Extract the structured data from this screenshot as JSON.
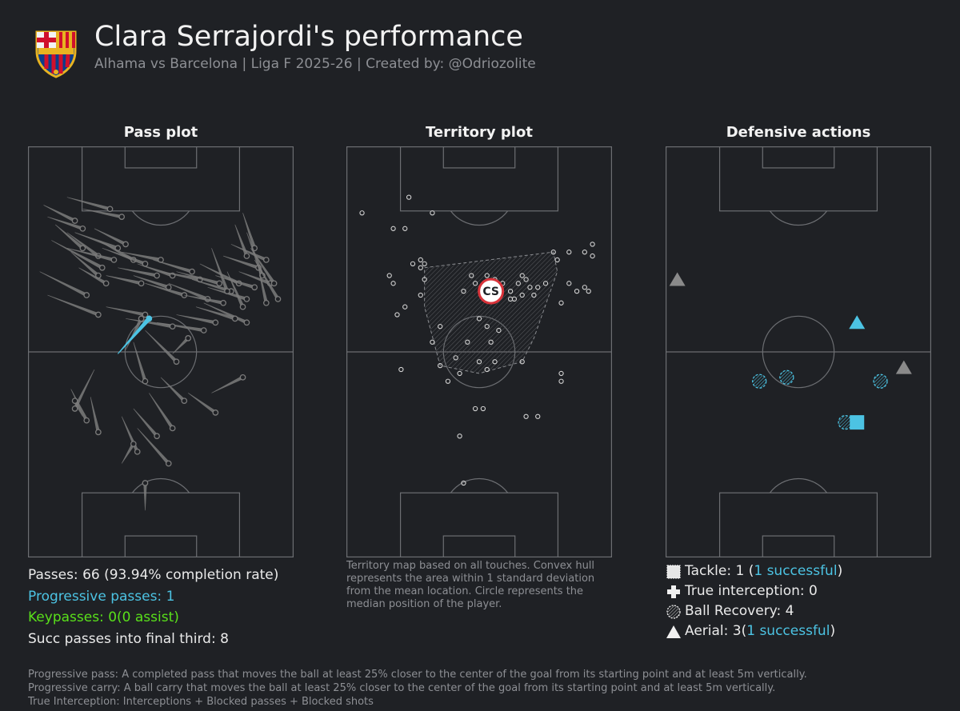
{
  "header": {
    "title": "Clara Serrajordi's performance",
    "subtitle": "Alhama vs Barcelona | Liga F 2025-26 | Created by: @Odriozolite",
    "crest_icon": "fc-barcelona-crest-icon"
  },
  "panels": {
    "pass_title": "Pass plot",
    "territory_title": "Territory plot",
    "defensive_title": "Defensive actions"
  },
  "colors": {
    "background": "#1f2125",
    "lines": "#6c6e72",
    "pass": "#7b7b7b",
    "progressive": "#4cc3e3",
    "keypass": "#59e01a",
    "marker_red": "#d9333a"
  },
  "pass_stats": {
    "passes": "Passes: 66 (93.94% completion rate)",
    "progressive": "Progressive passes: 1",
    "keypasses": "Keypasses: 0(0 assist)",
    "final_third": "Succ passes into final third: 8"
  },
  "territory_note": "Territory map based on all touches. Convex hull represents the area within 1 standard deviation from the mean location. Circle represents the median position of the player.",
  "defensive_legend": {
    "tackle_prefix": "Tackle: 1 (",
    "tackle_success": "1 successful",
    "tackle_suffix": ")",
    "interception": "True interception: 0",
    "recovery": "Ball Recovery: 4",
    "aerial_prefix": "Aerial: 3(",
    "aerial_success": "1 successful",
    "aerial_suffix": ")"
  },
  "footer": {
    "line1": "Progressive pass: A completed pass that moves the ball at least 25% closer to the center of the goal from its starting point and at least 5m vertically.",
    "line2": "Progressive carry: A ball carry that moves the ball at least 25% closer to the center of the goal from its starting point and at least 5m vertically.",
    "line3": "True Interception: Interceptions + Blocked passes + Blocked shots"
  },
  "chart_data": [
    {
      "type": "scatter",
      "title": "Pass plot",
      "pitch": {
        "width": 68,
        "length": 105,
        "attacking_direction": "up"
      },
      "passes": [
        {
          "x": [
            4,
            12
          ],
          "y": [
            90,
            86
          ],
          "type": "completed"
        },
        {
          "x": [
            5,
            14
          ],
          "y": [
            87,
            84
          ],
          "type": "completed"
        },
        {
          "x": [
            7,
            14
          ],
          "y": [
            85,
            79
          ],
          "type": "completed"
        },
        {
          "x": [
            10,
            18
          ],
          "y": [
            83,
            77
          ],
          "type": "completed"
        },
        {
          "x": [
            10,
            22
          ],
          "y": [
            79,
            76
          ],
          "type": "completed"
        },
        {
          "x": [
            6,
            19
          ],
          "y": [
            81,
            74
          ],
          "type": "completed"
        },
        {
          "x": [
            3,
            15
          ],
          "y": [
            73,
            67
          ],
          "type": "completed"
        },
        {
          "x": [
            5,
            18
          ],
          "y": [
            67,
            62
          ],
          "type": "completed"
        },
        {
          "x": [
            12,
            23
          ],
          "y": [
            83,
            79
          ],
          "type": "completed"
        },
        {
          "x": [
            17,
            25
          ],
          "y": [
            84,
            80
          ],
          "type": "completed"
        },
        {
          "x": [
            11,
            18
          ],
          "y": [
            78,
            72
          ],
          "type": "completed"
        },
        {
          "x": [
            13,
            20
          ],
          "y": [
            74,
            70
          ],
          "type": "completed"
        },
        {
          "x": [
            10,
            21
          ],
          "y": [
            92,
            89
          ],
          "type": "completed"
        },
        {
          "x": [
            14,
            24
          ],
          "y": [
            89,
            87
          ],
          "type": "completed"
        },
        {
          "x": [
            18,
            27
          ],
          "y": [
            81,
            76
          ],
          "type": "completed"
        },
        {
          "x": [
            19,
            30
          ],
          "y": [
            79,
            75
          ],
          "type": "completed"
        },
        {
          "x": [
            20,
            29
          ],
          "y": [
            72,
            70
          ],
          "type": "completed"
        },
        {
          "x": [
            23,
            33
          ],
          "y": [
            74,
            72
          ],
          "type": "completed"
        },
        {
          "x": [
            24,
            34
          ],
          "y": [
            78,
            76
          ],
          "type": "completed"
        },
        {
          "x": [
            27,
            36
          ],
          "y": [
            72,
            69
          ],
          "type": "completed"
        },
        {
          "x": [
            28,
            37
          ],
          "y": [
            75,
            72
          ],
          "type": "completed"
        },
        {
          "x": [
            30,
            40
          ],
          "y": [
            70,
            67
          ],
          "type": "completed"
        },
        {
          "x": [
            32,
            42
          ],
          "y": [
            76,
            73
          ],
          "type": "completed"
        },
        {
          "x": [
            34,
            44
          ],
          "y": [
            73,
            71
          ],
          "type": "completed"
        },
        {
          "x": [
            36,
            46
          ],
          "y": [
            70,
            66
          ],
          "type": "completed"
        },
        {
          "x": [
            38,
            49
          ],
          "y": [
            73,
            70
          ],
          "type": "completed"
        },
        {
          "x": [
            40,
            50
          ],
          "y": [
            67,
            65
          ],
          "type": "completed"
        },
        {
          "x": [
            42,
            52
          ],
          "y": [
            71,
            68
          ],
          "type": "completed"
        },
        {
          "x": [
            44,
            54
          ],
          "y": [
            75,
            70
          ],
          "type": "completed"
        },
        {
          "x": [
            46,
            56
          ],
          "y": [
            69,
            66
          ],
          "type": "completed"
        },
        {
          "x": [
            48,
            58
          ],
          "y": [
            72,
            69
          ],
          "type": "completed"
        },
        {
          "x": [
            50,
            59
          ],
          "y": [
            77,
            74
          ],
          "type": "completed"
        },
        {
          "x": [
            52,
            61
          ],
          "y": [
            80,
            76
          ],
          "type": "completed"
        },
        {
          "x": [
            54,
            62
          ],
          "y": [
            73,
            70
          ],
          "type": "completed"
        },
        {
          "x": [
            55,
            58
          ],
          "y": [
            88,
            79
          ],
          "type": "completed"
        },
        {
          "x": [
            53,
            56
          ],
          "y": [
            85,
            77
          ],
          "type": "completed"
        },
        {
          "x": [
            56,
            60
          ],
          "y": [
            83,
            72
          ],
          "type": "completed"
        },
        {
          "x": [
            57,
            63
          ],
          "y": [
            79,
            70
          ],
          "type": "completed"
        },
        {
          "x": [
            51,
            55
          ],
          "y": [
            73,
            64
          ],
          "type": "completed"
        },
        {
          "x": [
            47,
            51
          ],
          "y": [
            79,
            68
          ],
          "type": "completed"
        },
        {
          "x": [
            58,
            64
          ],
          "y": [
            76,
            66
          ],
          "type": "completed"
        },
        {
          "x": [
            59,
            61
          ],
          "y": [
            74,
            65
          ],
          "type": "completed"
        },
        {
          "x": [
            45,
            56
          ],
          "y": [
            65,
            60
          ],
          "type": "completed"
        },
        {
          "x": [
            43,
            53
          ],
          "y": [
            64,
            61
          ],
          "type": "completed"
        },
        {
          "x": [
            38,
            48
          ],
          "y": [
            62,
            60
          ],
          "type": "completed"
        },
        {
          "x": [
            33,
            45
          ],
          "y": [
            60,
            58
          ],
          "type": "completed"
        },
        {
          "x": [
            25,
            37
          ],
          "y": [
            61,
            59
          ],
          "type": "completed"
        },
        {
          "x": [
            20,
            30
          ],
          "y": [
            64,
            62
          ],
          "type": "completed"
        },
        {
          "x": [
            30,
            38
          ],
          "y": [
            58,
            50
          ],
          "type": "completed"
        },
        {
          "x": [
            27,
            30
          ],
          "y": [
            55,
            45
          ],
          "type": "completed"
        },
        {
          "x": [
            34,
            40
          ],
          "y": [
            46,
            40
          ],
          "type": "completed"
        },
        {
          "x": [
            31,
            37
          ],
          "y": [
            42,
            33
          ],
          "type": "completed"
        },
        {
          "x": [
            27,
            33
          ],
          "y": [
            38,
            31
          ],
          "type": "completed"
        },
        {
          "x": [
            24,
            28
          ],
          "y": [
            36,
            27
          ],
          "type": "completed"
        },
        {
          "x": [
            28,
            36
          ],
          "y": [
            33,
            24
          ],
          "type": "completed"
        },
        {
          "x": [
            17,
            12
          ],
          "y": [
            48,
            38
          ],
          "type": "completed"
        },
        {
          "x": [
            16,
            18
          ],
          "y": [
            41,
            32
          ],
          "type": "completed"
        },
        {
          "x": [
            11,
            15
          ],
          "y": [
            43,
            35
          ],
          "type": "completed"
        },
        {
          "x": [
            41,
            48
          ],
          "y": [
            42,
            37
          ],
          "type": "completed"
        },
        {
          "x": [
            47,
            55
          ],
          "y": [
            42,
            46
          ],
          "type": "completed"
        },
        {
          "x": [
            25,
            29
          ],
          "y": [
            53,
            61
          ],
          "type": "completed"
        },
        {
          "x": [
            37,
            41
          ],
          "y": [
            52,
            56
          ],
          "type": "completed"
        },
        {
          "x": [
            14,
            12
          ],
          "y": [
            36,
            40
          ],
          "type": "completed"
        },
        {
          "x": [
            24,
            27
          ],
          "y": [
            24,
            29
          ],
          "type": "completed"
        },
        {
          "x": [
            30,
            30
          ],
          "y": [
            12,
            19
          ],
          "type": "completed"
        },
        {
          "x": [
            23,
            31
          ],
          "y": [
            52,
            61
          ],
          "type": "progressive"
        }
      ]
    },
    {
      "type": "scatter",
      "title": "Territory plot",
      "pitch": {
        "width": 68,
        "length": 105,
        "attacking_direction": "up"
      },
      "median_position": {
        "x": 37,
        "y": 68,
        "label": "CS"
      },
      "convex_hull": [
        [
          20,
          74
        ],
        [
          53,
          78
        ],
        [
          54,
          73
        ],
        [
          48,
          56
        ],
        [
          45,
          50
        ],
        [
          34,
          47
        ],
        [
          24,
          49
        ],
        [
          20,
          64
        ]
      ],
      "touches": [
        [
          4,
          88
        ],
        [
          16,
          92
        ],
        [
          22,
          88
        ],
        [
          12,
          84
        ],
        [
          15,
          84
        ],
        [
          19,
          76
        ],
        [
          17,
          75
        ],
        [
          12,
          70
        ],
        [
          11,
          72
        ],
        [
          20,
          71
        ],
        [
          19,
          74
        ],
        [
          20,
          75
        ],
        [
          19,
          67
        ],
        [
          32,
          72
        ],
        [
          33,
          70
        ],
        [
          30,
          68
        ],
        [
          36,
          72
        ],
        [
          38,
          71
        ],
        [
          40,
          70
        ],
        [
          45,
          72
        ],
        [
          46,
          71
        ],
        [
          44,
          70
        ],
        [
          42,
          68
        ],
        [
          47,
          69
        ],
        [
          45,
          67
        ],
        [
          49,
          69
        ],
        [
          43,
          66
        ],
        [
          48,
          67
        ],
        [
          42,
          66
        ],
        [
          51,
          70
        ],
        [
          53,
          78
        ],
        [
          54,
          76
        ],
        [
          57,
          78
        ],
        [
          61,
          78
        ],
        [
          63,
          80
        ],
        [
          63,
          77
        ],
        [
          57,
          70
        ],
        [
          59,
          68
        ],
        [
          61,
          69
        ],
        [
          62,
          68
        ],
        [
          55,
          65
        ],
        [
          36,
          59
        ],
        [
          37,
          55
        ],
        [
          39,
          58
        ],
        [
          34,
          61
        ],
        [
          31,
          55
        ],
        [
          24,
          59
        ],
        [
          22,
          55
        ],
        [
          15,
          64
        ],
        [
          13,
          62
        ],
        [
          28,
          51
        ],
        [
          34,
          50
        ],
        [
          38,
          50
        ],
        [
          45,
          50
        ],
        [
          36,
          48
        ],
        [
          24,
          49
        ],
        [
          29,
          47
        ],
        [
          14,
          48
        ],
        [
          26,
          45
        ],
        [
          55,
          47
        ],
        [
          55,
          45
        ],
        [
          33,
          38
        ],
        [
          35,
          38
        ],
        [
          46,
          36
        ],
        [
          49,
          36
        ],
        [
          29,
          31
        ],
        [
          30,
          19
        ]
      ]
    },
    {
      "type": "scatter",
      "title": "Defensive actions",
      "pitch": {
        "width": 68,
        "length": 105,
        "attacking_direction": "up"
      },
      "actions": [
        {
          "type": "aerial",
          "outcome": "unsuccessful",
          "x": 3,
          "y": 71
        },
        {
          "type": "aerial",
          "outcome": "successful",
          "x": 49,
          "y": 60
        },
        {
          "type": "aerial",
          "outcome": "unsuccessful",
          "x": 61,
          "y": 48.5
        },
        {
          "type": "ball_recovery",
          "x": 31,
          "y": 46
        },
        {
          "type": "ball_recovery",
          "x": 24,
          "y": 45
        },
        {
          "type": "ball_recovery",
          "x": 55,
          "y": 45
        },
        {
          "type": "ball_recovery",
          "x": 46,
          "y": 34.5
        },
        {
          "type": "tackle",
          "outcome": "successful",
          "x": 49,
          "y": 34.5
        }
      ]
    }
  ]
}
